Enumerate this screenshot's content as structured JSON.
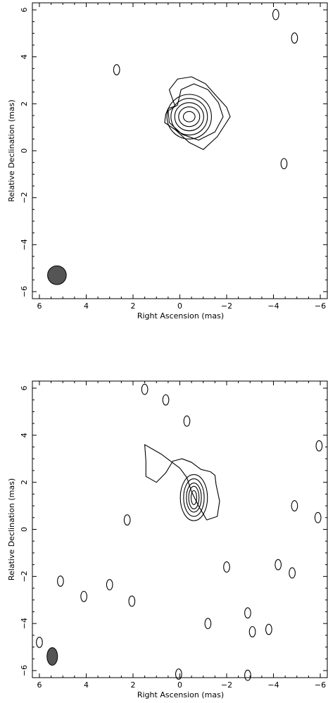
{
  "chart_data": [
    {
      "type": "contour",
      "xlabel": "Right Ascension  (mas)",
      "ylabel": "Relative Declination  (mas)",
      "xlim": [
        6.3,
        -6.3
      ],
      "ylim": [
        -6.3,
        6.3
      ],
      "xticks": [
        6,
        4,
        2,
        0,
        -2,
        -4,
        -6
      ],
      "yticks": [
        -6,
        -4,
        -2,
        0,
        2,
        4,
        6
      ],
      "xtick_labels": [
        "6",
        "4",
        "2",
        "0",
        "−2",
        "−4",
        "−6"
      ],
      "ytick_labels": [
        "−6",
        "−4",
        "−2",
        "0",
        "2",
        "4",
        "6"
      ],
      "peak": {
        "ra": -0.4,
        "dec": 1.45
      },
      "contour_levels": 7,
      "beam": {
        "ra": 5.25,
        "dec": -5.3,
        "major_mas": 0.8,
        "minor_mas": 0.8
      },
      "features": [
        {
          "ra": -4.1,
          "dec": 5.8
        },
        {
          "ra": 2.7,
          "dec": 3.45
        },
        {
          "ra": -4.45,
          "dec": -0.55
        },
        {
          "ra": -4.9,
          "dec": 4.8
        }
      ]
    },
    {
      "type": "contour",
      "xlabel": "Right Ascension  (mas)",
      "ylabel": "Relative Declination  (mas)",
      "xlim": [
        6.3,
        -6.3
      ],
      "ylim": [
        -6.3,
        6.3
      ],
      "xticks": [
        6,
        4,
        2,
        0,
        -2,
        -4,
        -6
      ],
      "yticks": [
        -6,
        -4,
        -2,
        0,
        2,
        4,
        6
      ],
      "xtick_labels": [
        "6",
        "4",
        "2",
        "0",
        "−2",
        "−4",
        "−6"
      ],
      "ytick_labels": [
        "−6",
        "−4",
        "−2",
        "0",
        "2",
        "4",
        "6"
      ],
      "peak": {
        "ra": -0.6,
        "dec": 1.35
      },
      "contour_levels": 5,
      "beam": {
        "ra": 5.45,
        "dec": -5.4,
        "major_mas": 0.75,
        "minor_mas": 0.45
      },
      "features": [
        {
          "ra": 1.5,
          "dec": 5.95
        },
        {
          "ra": 0.6,
          "dec": 5.5
        },
        {
          "ra": -0.3,
          "dec": 4.6
        },
        {
          "ra": 2.25,
          "dec": 0.4
        },
        {
          "ra": -4.9,
          "dec": 1.0
        },
        {
          "ra": -5.9,
          "dec": 0.5
        },
        {
          "ra": -5.95,
          "dec": 3.55
        },
        {
          "ra": -2.0,
          "dec": -1.6
        },
        {
          "ra": -4.2,
          "dec": -1.5
        },
        {
          "ra": -4.8,
          "dec": -1.85
        },
        {
          "ra": 5.1,
          "dec": -2.2
        },
        {
          "ra": 3.0,
          "dec": -2.35
        },
        {
          "ra": 4.1,
          "dec": -2.85
        },
        {
          "ra": 2.05,
          "dec": -3.05
        },
        {
          "ra": -1.2,
          "dec": -4.0
        },
        {
          "ra": -2.9,
          "dec": -3.55
        },
        {
          "ra": -3.1,
          "dec": -4.35
        },
        {
          "ra": -3.8,
          "dec": -4.25
        },
        {
          "ra": 6.0,
          "dec": -4.8
        },
        {
          "ra": 0.05,
          "dec": -6.15
        },
        {
          "ra": -2.9,
          "dec": -6.2
        }
      ]
    }
  ]
}
